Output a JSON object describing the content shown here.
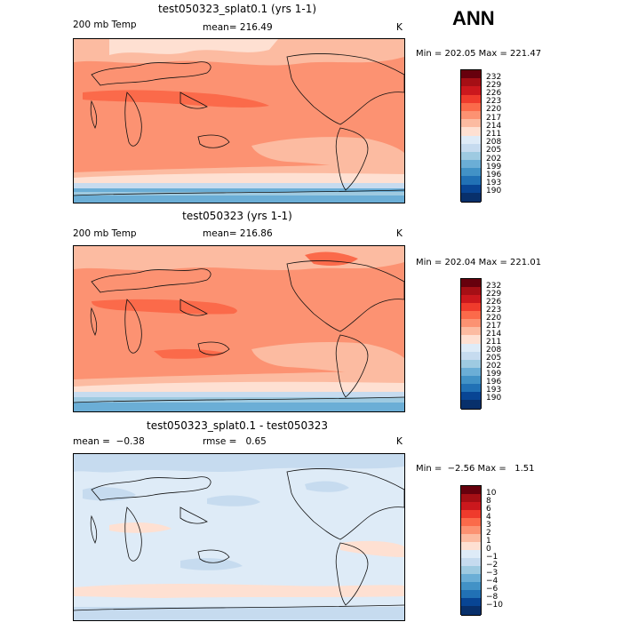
{
  "header": {
    "season": "ANN"
  },
  "chart_data": [
    {
      "type": "heatmap",
      "title": "test050323_splat0.1 (yrs 1-1)",
      "variable": "200 mb Temp",
      "mean_text": "mean= 216.49",
      "units": "K",
      "minmax_text": "Min = 202.05 Max = 221.47",
      "min": 202.05,
      "max": 221.47,
      "colorbar_labels": [
        "232",
        "229",
        "226",
        "223",
        "220",
        "217",
        "214",
        "211",
        "208",
        "205",
        "202",
        "199",
        "196",
        "193",
        "190"
      ]
    },
    {
      "type": "heatmap",
      "title": "test050323 (yrs 1-1)",
      "variable": "200 mb Temp",
      "mean_text": "mean= 216.86",
      "units": "K",
      "minmax_text": "Min = 202.04 Max = 221.01",
      "min": 202.04,
      "max": 221.01,
      "colorbar_labels": [
        "232",
        "229",
        "226",
        "223",
        "220",
        "217",
        "214",
        "211",
        "208",
        "205",
        "202",
        "199",
        "196",
        "193",
        "190"
      ]
    },
    {
      "type": "heatmap",
      "title": "test050323_splat0.1 - test050323",
      "mean_text": "mean =  −0.38",
      "rmse_text": "rmse =   0.65",
      "units": "K",
      "minmax_text": "Min =  −2.56 Max =   1.51",
      "min": -2.56,
      "max": 1.51,
      "colorbar_labels": [
        "10",
        "8",
        "6",
        "4",
        "3",
        "2",
        "1",
        "0",
        "−1",
        "−2",
        "−3",
        "−4",
        "−6",
        "−8",
        "−10"
      ]
    }
  ],
  "colors": {
    "scale": [
      "#67000d",
      "#a50f15",
      "#cb181d",
      "#ef3b2c",
      "#fb6a4a",
      "#fc9272",
      "#fcbba1",
      "#fee0d2",
      "#deebf7",
      "#c6dbef",
      "#9ecae1",
      "#6baed6",
      "#4292c6",
      "#2171b5",
      "#084594",
      "#08306b"
    ]
  }
}
